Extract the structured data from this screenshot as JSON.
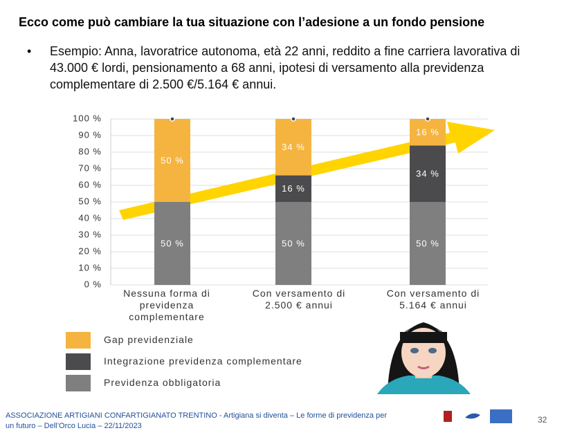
{
  "title": "Ecco come può cambiare la tua situazione con l’adesione a un fondo pensione",
  "bullet": "Esempio: Anna, lavoratrice autonoma, età 22 anni, reddito a fine carriera lavorativa di 43.000 € lordi, pensionamento a 68 anni, ipotesi di versamento alla previdenza complementare di 2.500 €/5.164 € annui.",
  "chart_data": {
    "type": "stacked-bar",
    "categories": [
      "Nessuna forma di previdenza complementare",
      "Con versamento di 2.500 € annui",
      "Con versamento di 5.164 € annui"
    ],
    "series": [
      {
        "name": "Previdenza obbligatoria",
        "color": "#7f7f7f",
        "values": [
          50,
          50,
          50
        ],
        "value_labels": [
          "50 %",
          "50 %",
          "50 %"
        ]
      },
      {
        "name": "Integrazione previdenza complementare",
        "color": "#4b4b4d",
        "values": [
          0,
          16,
          34
        ],
        "value_labels": [
          null,
          "16 %",
          "34 %"
        ]
      },
      {
        "name": "Gap previdenziale",
        "color": "#f5b43f",
        "values": [
          50,
          34,
          16
        ],
        "value_labels": [
          "50 %",
          "34 %",
          "16 %"
        ]
      }
    ],
    "ylim": [
      0,
      100
    ],
    "yticks": [
      {
        "value": 0,
        "label": "0 %"
      },
      {
        "value": 10,
        "label": "10 %"
      },
      {
        "value": 20,
        "label": "20 %"
      },
      {
        "value": 30,
        "label": "30 %"
      },
      {
        "value": 40,
        "label": "40 %"
      },
      {
        "value": 50,
        "label": "50 %"
      },
      {
        "value": 60,
        "label": "60 %"
      },
      {
        "value": 70,
        "label": "70 %"
      },
      {
        "value": 80,
        "label": "80 %"
      },
      {
        "value": 90,
        "label": "90 %"
      },
      {
        "value": 100,
        "label": "100 %"
      }
    ],
    "grid": true
  },
  "footer": "ASSOCIAZIONE ARTIGIANI CONFARTIGIANATO TRENTINO - Artigiana si diventa – Le forme di previdenza per un futuro – Dell’Orco Lucia – 22/11/2023",
  "page_number": "32"
}
